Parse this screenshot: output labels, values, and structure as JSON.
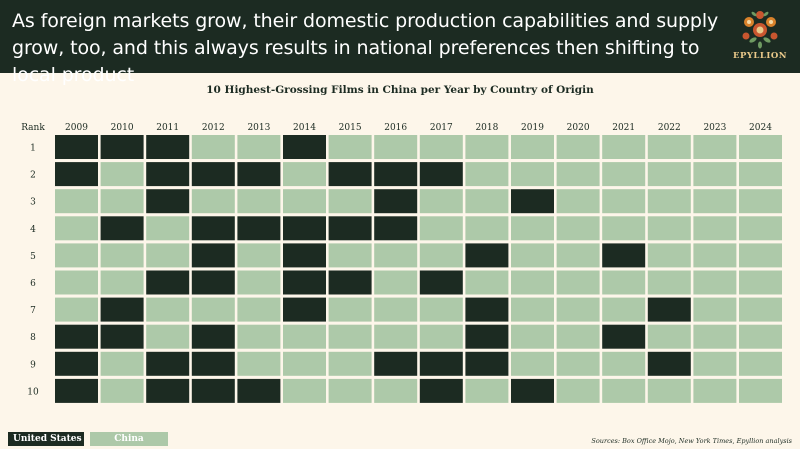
{
  "header": {
    "headline": "As foreign markets grow, their domestic production capabilities and supply grow, too, and this always results in national preferences then shifting to local product",
    "logo_text": "EPYLLION"
  },
  "colors": {
    "us": "#1c2b22",
    "china": "#adc9a9",
    "header_bg": "#1c2b22",
    "background": "#fdf6ea"
  },
  "chart_data": {
    "type": "heatmap",
    "title": "10 Highest-Grossing Films in China per Year by Country of Origin",
    "row_label": "Rank",
    "x": [
      "2009",
      "2010",
      "2011",
      "2012",
      "2013",
      "2014",
      "2015",
      "2016",
      "2017",
      "2018",
      "2019",
      "2020",
      "2021",
      "2022",
      "2023",
      "2024"
    ],
    "y": [
      "1",
      "2",
      "3",
      "4",
      "5",
      "6",
      "7",
      "8",
      "9",
      "10"
    ],
    "legend": [
      {
        "name": "United States",
        "code": 1
      },
      {
        "name": "China",
        "code": 0
      }
    ],
    "values": [
      [
        1,
        1,
        1,
        0,
        0,
        1,
        0,
        0,
        0,
        0,
        0,
        0,
        0,
        0,
        0,
        0
      ],
      [
        1,
        0,
        1,
        1,
        1,
        0,
        1,
        1,
        1,
        0,
        0,
        0,
        0,
        0,
        0,
        0
      ],
      [
        0,
        0,
        1,
        0,
        0,
        0,
        0,
        1,
        0,
        0,
        1,
        0,
        0,
        0,
        0,
        0
      ],
      [
        0,
        1,
        0,
        1,
        1,
        1,
        1,
        1,
        0,
        0,
        0,
        0,
        0,
        0,
        0,
        0
      ],
      [
        0,
        0,
        0,
        1,
        0,
        1,
        0,
        0,
        0,
        1,
        0,
        0,
        1,
        0,
        0,
        0
      ],
      [
        0,
        0,
        1,
        1,
        0,
        1,
        1,
        0,
        1,
        0,
        0,
        0,
        0,
        0,
        0,
        0
      ],
      [
        0,
        1,
        0,
        0,
        0,
        1,
        0,
        0,
        0,
        1,
        0,
        0,
        0,
        1,
        0,
        0
      ],
      [
        1,
        1,
        0,
        1,
        0,
        0,
        0,
        0,
        0,
        1,
        0,
        0,
        1,
        0,
        0,
        0
      ],
      [
        1,
        0,
        1,
        1,
        0,
        0,
        0,
        1,
        1,
        1,
        0,
        0,
        0,
        1,
        0,
        0
      ],
      [
        1,
        0,
        1,
        1,
        1,
        0,
        0,
        0,
        1,
        0,
        1,
        0,
        0,
        0,
        0,
        0
      ]
    ]
  },
  "footer": {
    "sources": "Sources: Box Office Mojo, New York Times, Epyllion analysis"
  }
}
